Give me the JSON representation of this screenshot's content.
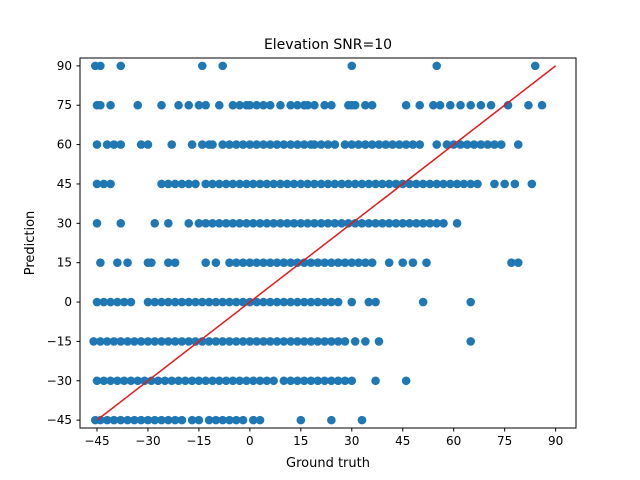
{
  "chart_data": {
    "type": "scatter",
    "title": "Elevation SNR=10",
    "xlabel": "Ground truth",
    "ylabel": "Prediction",
    "xlim": [
      -50,
      96
    ],
    "ylim": [
      -48,
      93
    ],
    "xticks": [
      -45,
      -30,
      -15,
      0,
      15,
      30,
      45,
      60,
      75,
      90
    ],
    "yticks": [
      -45,
      -30,
      -15,
      0,
      15,
      30,
      45,
      60,
      75,
      90
    ],
    "grid": false,
    "legend": "none",
    "series": [
      {
        "marker_color": "#1f77b4",
        "rows": [
          {
            "y": 90,
            "x": [
              -45.5,
              -44,
              -38,
              -14,
              -8,
              30,
              55,
              84
            ]
          },
          {
            "y": 75,
            "x": [
              -45,
              -44,
              -41,
              -33,
              -26,
              -21,
              -18,
              -15,
              -13,
              -9,
              -5,
              -3,
              -1,
              0,
              2,
              4,
              6,
              9,
              12,
              14,
              16,
              17,
              19,
              22,
              24,
              29,
              30,
              31,
              34,
              36,
              46,
              50,
              54,
              56,
              59,
              62,
              65,
              68,
              71,
              76,
              82,
              86
            ]
          },
          {
            "y": 60,
            "x": [
              -45,
              -42,
              -40,
              -38,
              -32,
              -30,
              -23,
              -17,
              -14,
              -12,
              -11,
              -8,
              -6,
              -4,
              -2,
              0,
              2,
              4,
              6,
              8,
              10,
              12,
              14,
              16,
              18,
              19,
              21,
              23,
              25,
              28,
              30,
              32,
              34,
              36,
              38,
              40,
              42,
              44,
              46,
              48,
              50,
              55,
              58,
              60,
              62,
              64,
              66,
              68,
              70,
              72,
              74,
              79
            ]
          },
          {
            "y": 45,
            "x": [
              -45,
              -43,
              -41,
              -26,
              -24,
              -22,
              -20,
              -18,
              -16,
              -13,
              -11,
              -9,
              -7,
              -5,
              -3,
              -1,
              1,
              3,
              5,
              7,
              9,
              11,
              13,
              15,
              17,
              19,
              21,
              23,
              25,
              27,
              29,
              31,
              33,
              35,
              37,
              39,
              41,
              43,
              45,
              47,
              49,
              51,
              53,
              55,
              57,
              59,
              61,
              63,
              65,
              67,
              72,
              75,
              78,
              83
            ]
          },
          {
            "y": 30,
            "x": [
              -45,
              -38,
              -28,
              -24,
              -18,
              -15,
              -13,
              -11,
              -9,
              -7,
              -5,
              -3,
              -1,
              1,
              3,
              5,
              7,
              9,
              11,
              13,
              15,
              17,
              19,
              21,
              23,
              25,
              27,
              29,
              31,
              33,
              35,
              37,
              39,
              41,
              43,
              45,
              47,
              49,
              51,
              53,
              55,
              57,
              61
            ]
          },
          {
            "y": 15,
            "x": [
              -44,
              -39,
              -36,
              -30,
              -29,
              -24,
              -22,
              -13,
              -10,
              -6,
              -4,
              -2,
              0,
              2,
              4,
              6,
              8,
              10,
              12,
              14,
              16,
              18,
              20,
              22,
              24,
              26,
              28,
              30,
              32,
              34,
              36,
              41,
              45,
              48,
              52,
              77,
              79
            ]
          },
          {
            "y": 0,
            "x": [
              -45,
              -43,
              -41,
              -39,
              -37,
              -35,
              -30,
              -28,
              -26,
              -24,
              -22,
              -20,
              -18,
              -16,
              -14,
              -12,
              -10,
              -8,
              -6,
              -4,
              -2,
              0,
              2,
              4,
              6,
              8,
              10,
              12,
              14,
              16,
              18,
              20,
              22,
              24,
              26,
              30,
              35,
              37,
              51,
              65
            ]
          },
          {
            "y": -15,
            "x": [
              -46,
              -44,
              -42,
              -40,
              -38,
              -36,
              -34,
              -32,
              -30,
              -28,
              -26,
              -24,
              -22,
              -20,
              -18,
              -16,
              -14,
              -12,
              -10,
              -8,
              -6,
              -4,
              -2,
              0,
              2,
              4,
              6,
              8,
              10,
              12,
              14,
              16,
              18,
              20,
              22,
              24,
              26,
              28,
              31,
              34,
              38,
              65
            ]
          },
          {
            "y": -30,
            "x": [
              -45,
              -43,
              -41,
              -39,
              -37,
              -35,
              -33,
              -31,
              -29,
              -27,
              -25,
              -23,
              -21,
              -19,
              -17,
              -15,
              -13,
              -11,
              -9,
              -7,
              -5,
              -3,
              -1,
              1,
              3,
              5,
              7,
              10,
              12,
              14,
              16,
              18,
              20,
              22,
              24,
              26,
              28,
              30,
              37,
              46
            ]
          },
          {
            "y": -45,
            "x": [
              -45.5,
              -44,
              -42,
              -40,
              -38,
              -36,
              -34,
              -32,
              -30,
              -28,
              -26,
              -24,
              -22,
              -20,
              -17,
              -15,
              -12,
              -10,
              -8,
              -6,
              -4,
              -2,
              1,
              3,
              15,
              24,
              33
            ]
          }
        ]
      }
    ],
    "reference_line": {
      "color": "#e31a1c",
      "from": [
        -45,
        -45
      ],
      "to": [
        90,
        90
      ]
    }
  }
}
